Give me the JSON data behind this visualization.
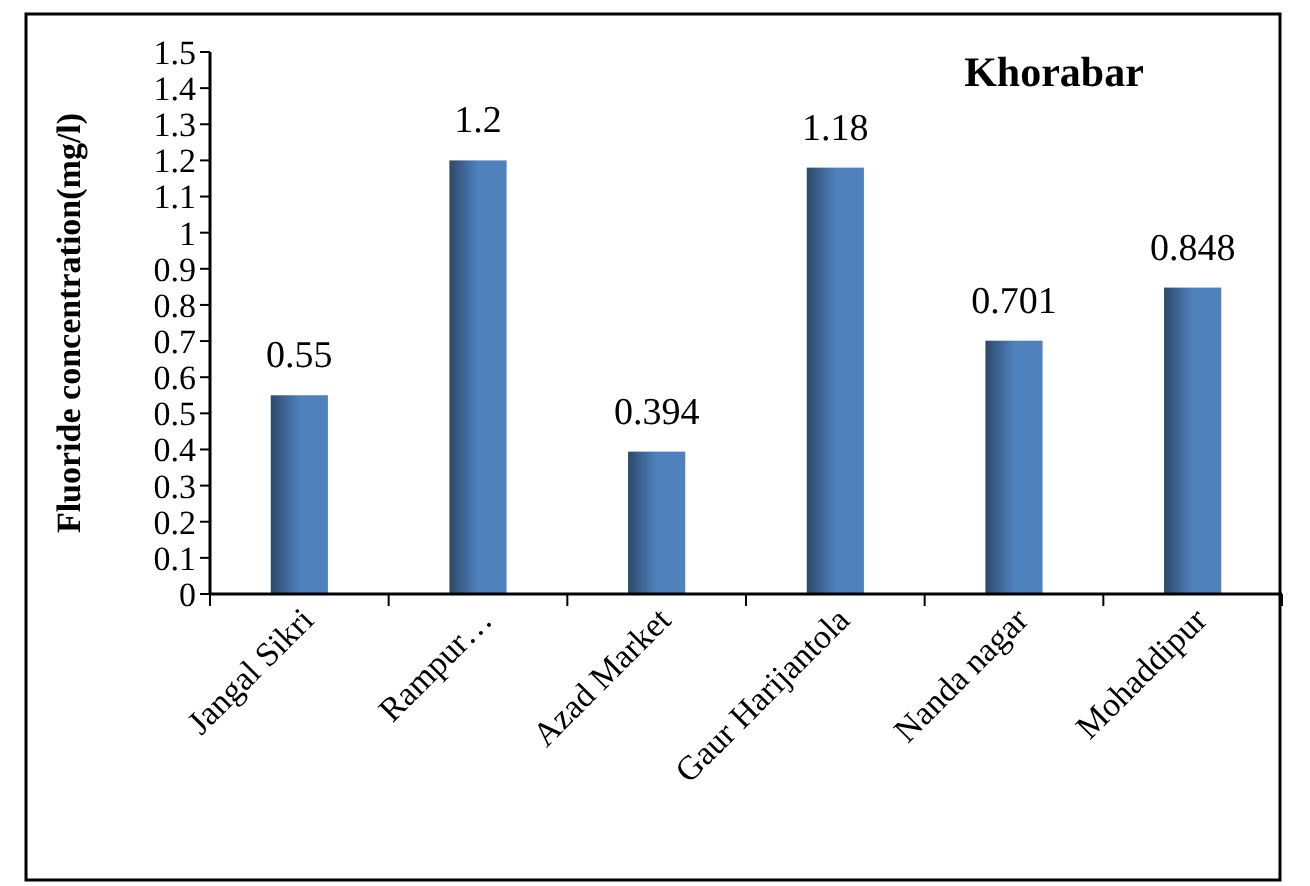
{
  "chart_data": {
    "type": "bar",
    "title": "Khorabar",
    "ylabel": "Fluoride concentration(mg/l)",
    "categories": [
      "Jangal Sikri",
      "Rampur…",
      "Azad Market",
      "Gaur Harijantola",
      "Nanda nagar",
      "Mohaddipur"
    ],
    "values": [
      0.55,
      1.2,
      0.394,
      1.18,
      0.701,
      0.848
    ],
    "color": "#4f81bd",
    "ylim": [
      0,
      1.5
    ],
    "yticks": [
      0,
      0.1,
      0.2,
      0.3,
      0.4,
      0.5,
      0.6,
      0.7,
      0.8,
      0.9,
      1,
      1.1,
      1.2,
      1.3,
      1.4,
      1.5
    ],
    "data_labels": true
  }
}
